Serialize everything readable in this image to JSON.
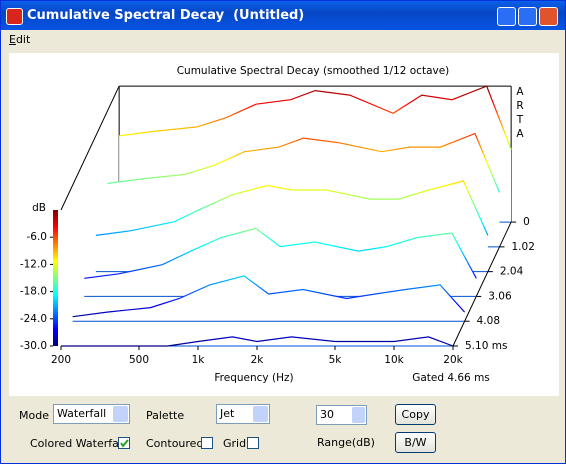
{
  "window": {
    "title": "Cumulative Spectral Decay  (Untitled)"
  },
  "menu": [
    "Edit"
  ],
  "chart_data": {
    "type": "waterfall",
    "title": "Cumulative Spectral Decay (smoothed 1/12 octave)",
    "brand": "ARTA",
    "x_label": "Frequency (Hz)",
    "z_label": "Gated 4.66 ms",
    "y_label": "dB",
    "log_x": true,
    "palette": "jet",
    "x": [
      200,
      300,
      500,
      700,
      1000,
      1500,
      2000,
      3000,
      5000,
      7000,
      10000,
      15000,
      20000
    ],
    "xlim": [
      200,
      20000
    ],
    "xticks": [
      200,
      500,
      {
        "value": 1000,
        "label": "1k"
      },
      {
        "value": 2000,
        "label": "2k"
      },
      {
        "value": 5000,
        "label": "5k"
      },
      {
        "value": 10000,
        "label": "10k"
      },
      {
        "value": 20000,
        "label": "20k"
      }
    ],
    "ylim": [
      -30,
      0
    ],
    "yticks": [
      {
        "value": -6,
        "label": "-6.0"
      },
      {
        "value": -12,
        "label": "-12.0"
      },
      {
        "value": -18,
        "label": "-18.0"
      },
      {
        "value": -24,
        "label": "-24.0"
      },
      {
        "value": -30,
        "label": "-30.0"
      }
    ],
    "zlim": [
      0,
      5.1
    ],
    "zticks": [
      0,
      1.02,
      2.04,
      3.06,
      4.08,
      {
        "value": 5.1,
        "label": "5.10 ms"
      }
    ],
    "series": [
      {
        "values": [
          -11,
          -10,
          -9,
          -7,
          -4,
          -3,
          -1,
          -2,
          -6,
          -2,
          -3,
          0,
          -14
        ]
      },
      {
        "values": [
          -16,
          -15,
          -14,
          -12,
          -9,
          -8,
          -6,
          -7,
          -9,
          -8,
          -8,
          -5,
          -18
        ]
      },
      {
        "values": [
          -22,
          -21,
          -19,
          -16,
          -13,
          -11,
          -12,
          -12,
          -14,
          -14,
          -12,
          -10,
          -22
        ]
      },
      {
        "values": [
          -26,
          -25,
          -23,
          -20,
          -17,
          -15,
          -19,
          -18,
          -20,
          -19,
          -17,
          -16,
          -26
        ]
      },
      {
        "values": [
          -29,
          -28,
          -27,
          -25,
          -22,
          -20,
          -24,
          -23,
          -25,
          -24,
          -23,
          -22,
          -28
        ]
      },
      {
        "values": [
          -30,
          -30,
          -30,
          -30,
          -29,
          -28,
          -29,
          -28,
          -29,
          -29,
          -29,
          -28,
          -30
        ]
      }
    ]
  },
  "controls": {
    "mode_label": "Mode",
    "mode": "Waterfall",
    "palette_label": "Palette",
    "palette": "Jet",
    "range": 30,
    "range_label": "Range(dB)",
    "copy": "Copy",
    "bw": "B/W",
    "colored_waterfall": "Colored Waterfall",
    "colored_checked": true,
    "contoured": "Contoured",
    "contoured_checked": false,
    "grid": "Grid",
    "grid_checked": false
  }
}
